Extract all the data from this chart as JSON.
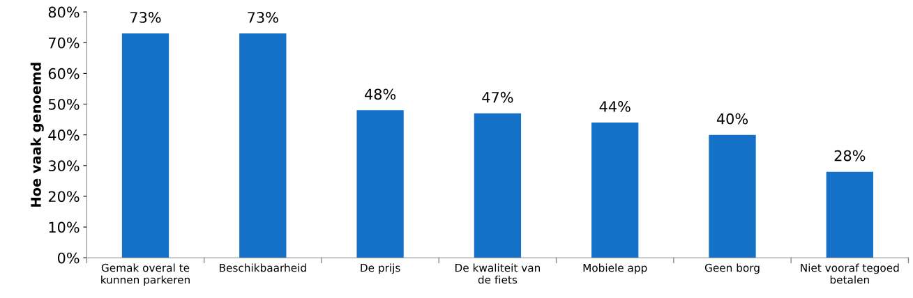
{
  "chart_data": {
    "type": "bar",
    "ylabel": "Hoe vaak genoemd",
    "categories": [
      "Gemak overal te\nkunnen parkeren",
      "Beschikbaarheid",
      "De prijs",
      "De kwaliteit van\nde fiets",
      "Mobiele app",
      "Geen borg",
      "Niet vooraf tegoed\nbetalen"
    ],
    "values": [
      73,
      73,
      48,
      47,
      44,
      40,
      28
    ],
    "color": "#1570c8",
    "ylim": [
      0,
      80
    ],
    "yticks": [
      {
        "value": 0,
        "label": "0%"
      },
      {
        "value": 10,
        "label": "10%"
      },
      {
        "value": 20,
        "label": "20%"
      },
      {
        "value": 30,
        "label": "30%"
      },
      {
        "value": 40,
        "label": "40%"
      },
      {
        "value": 50,
        "label": "50%"
      },
      {
        "value": 60,
        "label": "60%"
      },
      {
        "value": 70,
        "label": "70%"
      },
      {
        "value": 80,
        "label": "80%"
      }
    ],
    "value_labels": [
      "73%",
      "73%",
      "48%",
      "47%",
      "44%",
      "40%",
      "28%"
    ],
    "grid": false,
    "legend": false
  }
}
